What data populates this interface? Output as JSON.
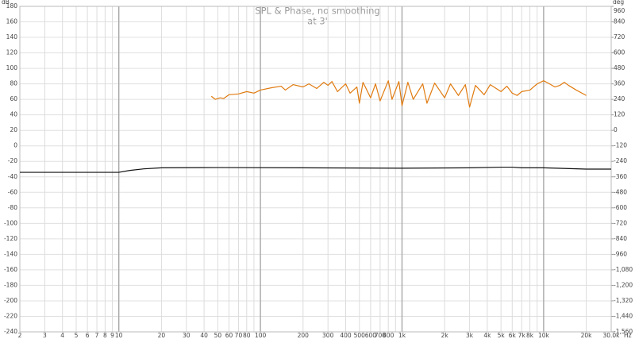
{
  "chart_data": {
    "type": "line",
    "title": "SPL & Phase, no smoothing",
    "subtitle": "at 3'",
    "y_unit": "dB",
    "y2_unit": "deg",
    "x_unit": "Hz",
    "log_x": true,
    "grid": true,
    "xlim": [
      2,
      30000
    ],
    "ylim": [
      -240,
      180
    ],
    "y2lim": [
      -1560,
      960
    ],
    "xticks": [
      2,
      3,
      4,
      5,
      6,
      7,
      8,
      9,
      10,
      20,
      30,
      40,
      50,
      60,
      70,
      80,
      100,
      200,
      300,
      400,
      500,
      600,
      700,
      800,
      {
        "value": 1000,
        "label": "1k"
      },
      {
        "value": 2000,
        "label": "2k"
      },
      {
        "value": 3000,
        "label": "3k"
      },
      {
        "value": 4000,
        "label": "4k"
      },
      {
        "value": 5000,
        "label": "5k"
      },
      {
        "value": 6000,
        "label": "6k"
      },
      {
        "value": 7000,
        "label": "7k"
      },
      {
        "value": 8000,
        "label": "8k"
      },
      {
        "value": 10000,
        "label": "10k"
      },
      {
        "value": 20000,
        "label": "20k"
      },
      {
        "value": 30000,
        "label": "30.0k"
      }
    ],
    "x_minor_ticks": [
      90,
      900,
      9000
    ],
    "yticks": [
      180,
      160,
      140,
      120,
      100,
      80,
      60,
      40,
      20,
      0,
      -20,
      -40,
      -60,
      -80,
      -100,
      -120,
      -140,
      -160,
      -180,
      -200,
      -220,
      -240
    ],
    "y2ticks": [
      960,
      840,
      720,
      600,
      480,
      360,
      240,
      120,
      0,
      -120,
      -240,
      -360,
      -480,
      -600,
      -720,
      -840,
      -960,
      {
        "value": -1080,
        "label": "-1,080"
      },
      {
        "value": -1200,
        "label": "-1,200"
      },
      {
        "value": -1320,
        "label": "-1,320"
      },
      {
        "value": -1440,
        "label": "-1,440"
      },
      {
        "value": -1560,
        "label": "-1,560"
      }
    ],
    "series": [
      {
        "color": "#e07b10",
        "axis": "y",
        "x": [
          45,
          48,
          52,
          55,
          60,
          70,
          80,
          90,
          100,
          120,
          140,
          150,
          170,
          200,
          220,
          250,
          280,
          300,
          320,
          350,
          400,
          430,
          480,
          500,
          530,
          600,
          650,
          700,
          800,
          850,
          950,
          1000,
          1100,
          1200,
          1400,
          1500,
          1700,
          2000,
          2200,
          2500,
          2800,
          3000,
          3300,
          3800,
          4200,
          5000,
          5500,
          6000,
          6500,
          7000,
          8000,
          9000,
          10000,
          11000,
          12000,
          13000,
          14000,
          15000,
          17000,
          20000
        ],
        "values": [
          64,
          60,
          62,
          61,
          66,
          67,
          70,
          68,
          72,
          75,
          77,
          72,
          79,
          76,
          80,
          74,
          82,
          78,
          83,
          70,
          80,
          68,
          76,
          55,
          82,
          62,
          80,
          58,
          84,
          60,
          83,
          52,
          82,
          60,
          80,
          55,
          81,
          62,
          80,
          65,
          79,
          50,
          78,
          66,
          79,
          70,
          77,
          68,
          65,
          70,
          72,
          80,
          84,
          80,
          76,
          78,
          82,
          78,
          72,
          65
        ]
      },
      {
        "color": "#111111",
        "axis": "y2",
        "x": [
          2,
          9,
          10,
          12,
          15,
          20,
          50,
          200,
          1000,
          3000,
          5000,
          6000,
          7000,
          10000,
          20000,
          30000
        ],
        "values": [
          -325,
          -325,
          -325,
          -310,
          -298,
          -290,
          -288,
          -290,
          -293,
          -290,
          -285,
          -285,
          -290,
          -290,
          -300,
          -300
        ]
      }
    ]
  }
}
